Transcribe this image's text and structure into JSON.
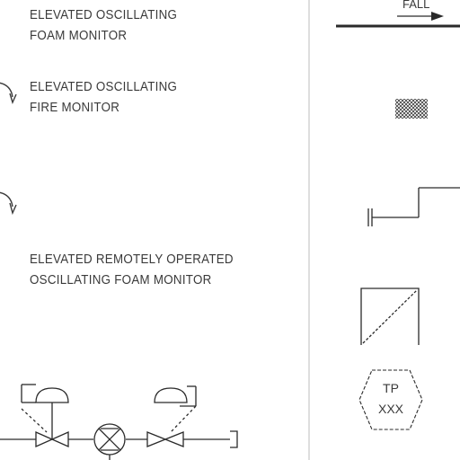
{
  "legend": {
    "foam_monitor": {
      "line1": "ELEVATED OSCILLATING",
      "line2": "FOAM MONITOR"
    },
    "fire_monitor": {
      "line1": "ELEVATED OSCILLATING",
      "line2": "FIRE MONITOR"
    },
    "remote_foam_monitor": {
      "line1": "ELEVATED REMOTELY OPERATED",
      "line2": "OSCILLATING FOAM MONITOR"
    }
  },
  "symbols": {
    "fall_label": "FALL",
    "test_point": {
      "line1": "TP",
      "line2": "XXX"
    }
  },
  "colors": {
    "ink": "#3a3a3a",
    "divider": "#bdbdbd"
  }
}
